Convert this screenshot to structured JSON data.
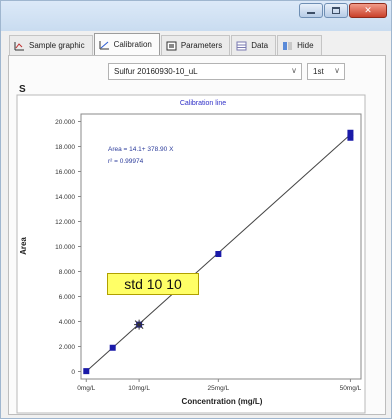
{
  "window": {
    "controls": {
      "minimize_icon": "minimize-icon",
      "maximize_icon": "maximize-icon",
      "close_icon": "close-icon"
    }
  },
  "tabs": [
    {
      "label": "Sample graphic",
      "icon": "sample-graphic-icon"
    },
    {
      "label": "Calibration",
      "icon": "calibration-icon",
      "active": true
    },
    {
      "label": "Parameters",
      "icon": "parameters-icon"
    },
    {
      "label": "Data",
      "icon": "data-icon"
    },
    {
      "label": "Hide",
      "icon": "hide-icon"
    }
  ],
  "selectors": {
    "sample": "Sulfur 20160930-10_uL",
    "order": "1st"
  },
  "element_label": "S",
  "chart_data": {
    "type": "scatter",
    "title": "Calibration line",
    "xlabel": "Concentration (mg/L)",
    "ylabel": "Area",
    "x_ticks": [
      {
        "label": "0mg/L",
        "x": 0
      },
      {
        "label": "10mg/L",
        "x": 10
      },
      {
        "label": "25mg/L",
        "x": 25
      },
      {
        "label": "50mg/L",
        "x": 50
      }
    ],
    "y_ticks": [
      "0",
      "2.000",
      "4.000",
      "6.000",
      "8.000",
      "10.000",
      "12.000",
      "14.000",
      "16.000",
      "18.000",
      "20.000"
    ],
    "ylim": [
      -600,
      20600
    ],
    "xlim": [
      -1,
      52
    ],
    "equation": "Area = 14.1+ 378.90 X",
    "r2": "r² = 0.99974",
    "points": [
      {
        "x": 0,
        "y": 30
      },
      {
        "x": 5,
        "y": 1900
      },
      {
        "x": 10,
        "y": 3750
      },
      {
        "x": 25,
        "y": 9400
      },
      {
        "x": 50,
        "y": 18700
      },
      {
        "x": 50,
        "y": 19100
      }
    ],
    "fit": {
      "intercept": 14.1,
      "slope": 378.9
    },
    "highlight": {
      "x": 10,
      "y": 3750,
      "label": "std 10 10"
    },
    "colors": {
      "points": "#1a1aa8",
      "line": "#444444",
      "equation": "#2a3a9a",
      "title": "#3030c8"
    }
  }
}
